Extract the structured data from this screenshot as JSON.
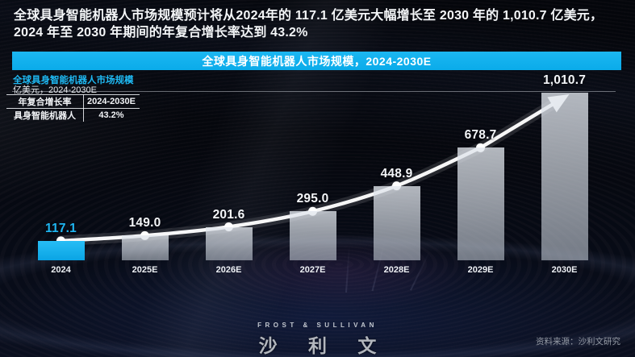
{
  "headline": {
    "line1": "全球具身智能机器人市场规模预计将从2024年的 117.1 亿美元大幅增长至 2030 年的 1,010.7 亿美元，",
    "line2": "2024 年至 2030 年期间的年复合增长率达到 43.2%"
  },
  "banner": {
    "title": "全球具身智能机器人市场规模，2024-2030E"
  },
  "chart_header": {
    "subtitle": "全球具身智能机器人市场规模",
    "unit_line": "亿美元，2024-2030E"
  },
  "cagr_table": {
    "col1_header": "年复合增长率",
    "col2_header": "2024-2030E",
    "row_label": "具身智能机器人",
    "row_value": "43.2%"
  },
  "chart_data": {
    "type": "bar",
    "title": "全球具身智能机器人市场规模，2024-2030E",
    "unit": "亿美元",
    "categories": [
      "2024",
      "2025E",
      "2026E",
      "2027E",
      "2028E",
      "2029E",
      "2030E"
    ],
    "values": [
      117.1,
      149.0,
      201.6,
      295.0,
      448.9,
      678.7,
      1010.7
    ],
    "value_labels": [
      "117.1",
      "149.0",
      "201.6",
      "295.0",
      "448.9",
      "678.7",
      "1,010.7"
    ],
    "ylim": [
      0,
      1010.7
    ],
    "highlight_index": 0,
    "trend_line": true,
    "legend_position": "top-left",
    "grid": false,
    "cagr_2024_2030E": "43.2%"
  },
  "footer": {
    "logo_top": "FROST & SULLIVAN",
    "logo_main": "沙 利 文",
    "source": "资料来源：沙利文研究"
  },
  "colors": {
    "accent": "#12b2ef",
    "bar_gray": "#cdd3db",
    "trend_line": "#ffffff",
    "background": "#05070d"
  }
}
